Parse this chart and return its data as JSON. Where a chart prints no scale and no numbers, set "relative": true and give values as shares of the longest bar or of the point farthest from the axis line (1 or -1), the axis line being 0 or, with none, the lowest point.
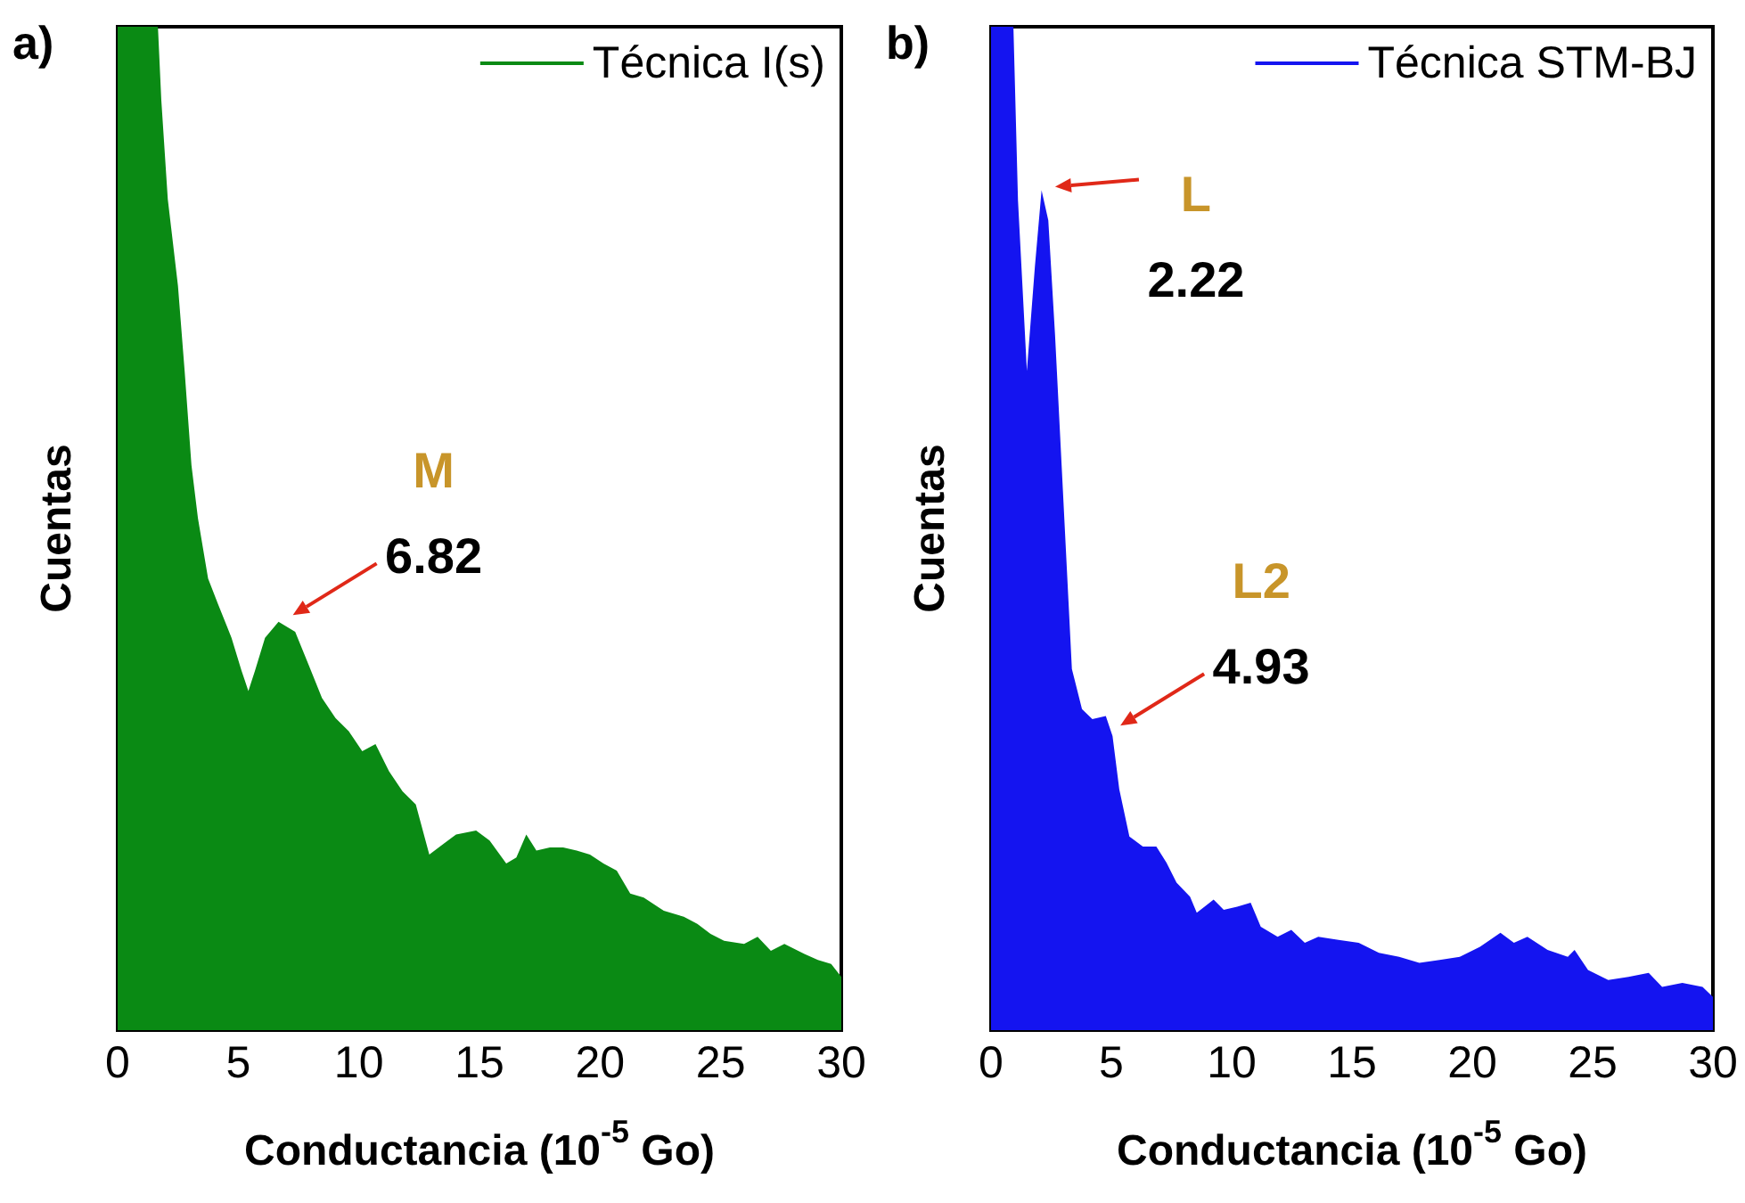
{
  "chart_data": [
    {
      "type": "area",
      "title": "a)",
      "xlabel": "Conductancia (10$^{-5}$ Go)",
      "ylabel": "Cuentas",
      "relative": true,
      "xlim": [
        0,
        30
      ],
      "xticks": [
        0,
        5,
        10,
        15,
        20,
        25,
        30
      ],
      "legend": "top right",
      "grid": false,
      "series": [
        {
          "name": "Técnica I(s)",
          "color": "#0a8a14",
          "x": [
            0,
            1.67,
            1.81,
            2.08,
            2.5,
            2.78,
            3.06,
            3.33,
            3.75,
            4.17,
            4.72,
            5.14,
            5.42,
            5.69,
            6.11,
            6.67,
            7.36,
            7.92,
            8.47,
            9.03,
            9.58,
            10.14,
            10.69,
            11.25,
            11.81,
            12.36,
            12.92,
            13.47,
            14.03,
            14.86,
            15.42,
            16.11,
            16.53,
            16.94,
            17.36,
            17.92,
            18.47,
            19.03,
            19.58,
            20.14,
            20.69,
            21.25,
            21.81,
            22.64,
            23.47,
            24.03,
            24.58,
            25.14,
            25.97,
            26.53,
            27.08,
            27.64,
            28.47,
            29.03,
            29.58,
            30
          ],
          "values": [
            1,
            1,
            0.927,
            0.828,
            0.742,
            0.656,
            0.563,
            0.51,
            0.45,
            0.424,
            0.391,
            0.358,
            0.338,
            0.358,
            0.391,
            0.407,
            0.397,
            0.364,
            0.331,
            0.311,
            0.298,
            0.278,
            0.285,
            0.258,
            0.238,
            0.225,
            0.175,
            0.185,
            0.195,
            0.199,
            0.189,
            0.166,
            0.172,
            0.195,
            0.179,
            0.182,
            0.182,
            0.179,
            0.175,
            0.166,
            0.159,
            0.136,
            0.132,
            0.119,
            0.113,
            0.106,
            0.096,
            0.089,
            0.086,
            0.093,
            0.079,
            0.086,
            0.076,
            0.07,
            0.066,
            0.053
          ]
        }
      ],
      "annotations": [
        "M",
        {
          "text": "6.82",
          "x": 6.82,
          "y": 0.41
        }
      ]
    },
    {
      "type": "area",
      "title": "b)",
      "xlabel": "Conductancia (10$^{-5}$ Go)",
      "ylabel": "Cuentas",
      "relative": true,
      "xlim": [
        0,
        30
      ],
      "xticks": [
        0,
        5,
        10,
        15,
        20,
        25,
        30
      ],
      "legend": "top right",
      "grid": false,
      "series": [
        {
          "name": "Técnica STM-BJ",
          "color": "#1414f0",
          "x": [
            0,
            0.93,
            1.12,
            1.49,
            1.82,
            2.1,
            2.38,
            2.66,
            2.94,
            3.22,
            3.36,
            3.78,
            4.21,
            4.77,
            5.05,
            5.33,
            5.75,
            6.31,
            6.87,
            7.29,
            7.71,
            8.27,
            8.55,
            9.25,
            9.67,
            10.23,
            10.79,
            11.21,
            11.91,
            12.48,
            13.04,
            13.6,
            14.44,
            15.28,
            16.12,
            16.96,
            17.8,
            18.64,
            19.48,
            20.32,
            21.17,
            21.73,
            22.29,
            23.13,
            23.97,
            24.25,
            24.81,
            25.65,
            26.49,
            27.33,
            27.89,
            28.73,
            29.57,
            30
          ],
          "values": [
            1,
            1,
            0.827,
            0.657,
            0.76,
            0.837,
            0.807,
            0.693,
            0.56,
            0.427,
            0.36,
            0.32,
            0.31,
            0.313,
            0.293,
            0.24,
            0.193,
            0.183,
            0.183,
            0.167,
            0.147,
            0.133,
            0.117,
            0.13,
            0.12,
            0.123,
            0.127,
            0.103,
            0.093,
            0.1,
            0.087,
            0.093,
            0.09,
            0.087,
            0.077,
            0.073,
            0.067,
            0.07,
            0.073,
            0.083,
            0.097,
            0.087,
            0.093,
            0.08,
            0.073,
            0.08,
            0.06,
            0.05,
            0.053,
            0.057,
            0.043,
            0.047,
            0.043,
            0.033
          ]
        }
      ],
      "annotations": [
        "L",
        {
          "text": "2.22",
          "x": 2.22,
          "y": 0.837
        },
        "L2",
        {
          "text": "4.93",
          "x": 4.93,
          "y": 0.3
        }
      ]
    }
  ]
}
